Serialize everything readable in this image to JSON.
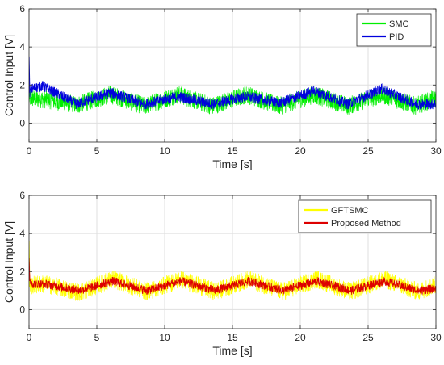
{
  "chart_data": [
    {
      "type": "line",
      "xlabel": "Time [s]",
      "ylabel": "Control Input [V]",
      "xlim": [
        0,
        30
      ],
      "ylim": [
        -1,
        6
      ],
      "xticks": [
        "0",
        "5",
        "10",
        "15",
        "20",
        "25",
        "30"
      ],
      "yticks": [
        "0",
        "2",
        "4",
        "6"
      ],
      "grid": true,
      "legend_position": "top-right",
      "series": [
        {
          "name": "SMC",
          "color": "#00ee00",
          "band_width": 0.95,
          "x": [
            0,
            1.2,
            3.5,
            6.0,
            8.5,
            11.0,
            13.5,
            16.0,
            18.5,
            21.0,
            23.5,
            26.0,
            28.5,
            30
          ],
          "y": [
            1.3,
            1.25,
            0.95,
            1.5,
            0.9,
            1.5,
            0.9,
            1.5,
            0.9,
            1.5,
            0.9,
            1.5,
            0.9,
            1.3
          ]
        },
        {
          "name": "PID",
          "color": "#0000dd",
          "band_width": 0.55,
          "x": [
            0,
            0.05,
            0.2,
            1.0,
            3.5,
            6.0,
            8.5,
            11.0,
            13.5,
            16.0,
            18.5,
            21.0,
            23.5,
            26.0,
            28.5,
            30
          ],
          "y": [
            3.5,
            1.6,
            1.8,
            1.95,
            1.0,
            1.6,
            1.0,
            1.4,
            1.0,
            1.4,
            1.05,
            1.7,
            1.0,
            1.8,
            1.0,
            1.0
          ]
        }
      ]
    },
    {
      "type": "line",
      "xlabel": "Time [s]",
      "ylabel": "Control Input [V]",
      "xlim": [
        0,
        30
      ],
      "ylim": [
        -1,
        6
      ],
      "xticks": [
        "0",
        "5",
        "10",
        "15",
        "20",
        "25",
        "30"
      ],
      "yticks": [
        "0",
        "2",
        "4",
        "6"
      ],
      "grid": true,
      "legend_position": "top-right",
      "series": [
        {
          "name": "GFTSMC",
          "color": "#ffff00",
          "band_width": 0.95,
          "x": [
            0,
            0.05,
            0.3,
            1.2,
            3.7,
            6.2,
            8.7,
            11.2,
            13.7,
            16.2,
            18.7,
            21.2,
            23.7,
            26.2,
            28.7,
            30
          ],
          "y": [
            3.6,
            1.2,
            1.3,
            1.35,
            0.9,
            1.6,
            0.95,
            1.6,
            0.95,
            1.6,
            0.95,
            1.6,
            0.95,
            1.6,
            0.95,
            1.3
          ]
        },
        {
          "name": "Proposed Method",
          "color": "#dd0000",
          "band_width": 0.45,
          "x": [
            0,
            0.05,
            0.3,
            1.2,
            3.7,
            6.2,
            8.7,
            11.2,
            13.7,
            16.2,
            18.7,
            21.2,
            23.7,
            26.2,
            28.7,
            30
          ],
          "y": [
            2.7,
            1.5,
            1.35,
            1.35,
            1.0,
            1.5,
            1.0,
            1.5,
            1.0,
            1.5,
            1.0,
            1.5,
            1.0,
            1.5,
            1.0,
            1.1
          ]
        }
      ]
    }
  ]
}
